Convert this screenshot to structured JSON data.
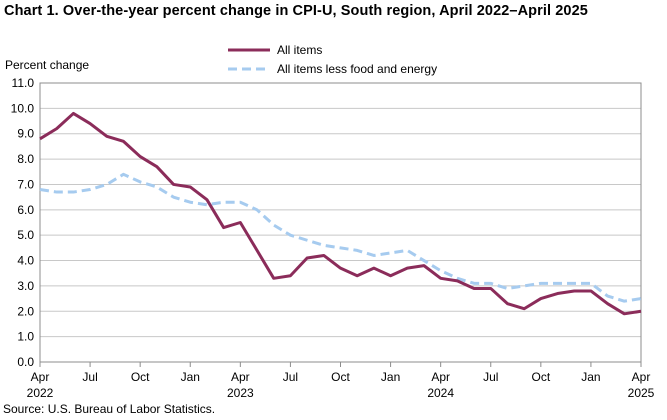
{
  "title": "Chart 1. Over-the-year percent change in CPI-U, South region, April 2022–April 2025",
  "source": "Source: U.S. Bureau of Labor Statistics.",
  "chart_data": {
    "type": "line",
    "ylabel": "Percent change",
    "ylim": [
      0,
      11
    ],
    "yticks": [
      "0.0",
      "1.0",
      "2.0",
      "3.0",
      "4.0",
      "5.0",
      "6.0",
      "7.0",
      "8.0",
      "9.0",
      "10.0",
      "11.0"
    ],
    "xtick_labels": [
      {
        "index": 0,
        "month": "Apr",
        "year": "2022"
      },
      {
        "index": 3,
        "month": "Jul",
        "year": ""
      },
      {
        "index": 6,
        "month": "Oct",
        "year": ""
      },
      {
        "index": 9,
        "month": "Jan",
        "year": ""
      },
      {
        "index": 12,
        "month": "Apr",
        "year": "2023"
      },
      {
        "index": 15,
        "month": "Jul",
        "year": ""
      },
      {
        "index": 18,
        "month": "Oct",
        "year": ""
      },
      {
        "index": 21,
        "month": "Jan",
        "year": ""
      },
      {
        "index": 24,
        "month": "Apr",
        "year": "2024"
      },
      {
        "index": 27,
        "month": "Jul",
        "year": ""
      },
      {
        "index": 30,
        "month": "Oct",
        "year": ""
      },
      {
        "index": 33,
        "month": "Jan",
        "year": ""
      },
      {
        "index": 36,
        "month": "Apr",
        "year": "2025"
      }
    ],
    "grid": "horizontal",
    "legend_position": "top-center",
    "series": [
      {
        "name": "All items",
        "color": "#8b2c5a",
        "style": "solid",
        "values": [
          8.8,
          9.2,
          9.8,
          9.4,
          8.9,
          8.7,
          8.1,
          7.7,
          7.0,
          6.9,
          6.4,
          5.3,
          5.5,
          4.4,
          3.3,
          3.4,
          4.1,
          4.2,
          3.7,
          3.4,
          3.7,
          3.4,
          3.7,
          3.8,
          3.3,
          3.2,
          2.9,
          2.9,
          2.3,
          2.1,
          2.5,
          2.7,
          2.8,
          2.8,
          2.3,
          1.9,
          2.0
        ]
      },
      {
        "name": "All items less food and energy",
        "color": "#a6cbef",
        "style": "dashed",
        "values": [
          6.8,
          6.7,
          6.7,
          6.8,
          7.0,
          7.4,
          7.1,
          6.9,
          6.5,
          6.3,
          6.2,
          6.3,
          6.3,
          6.0,
          5.4,
          5.0,
          4.8,
          4.6,
          4.5,
          4.4,
          4.2,
          4.3,
          4.4,
          4.0,
          3.6,
          3.3,
          3.1,
          3.1,
          2.9,
          3.0,
          3.1,
          3.1,
          3.1,
          3.1,
          2.6,
          2.4,
          2.5
        ]
      }
    ]
  }
}
